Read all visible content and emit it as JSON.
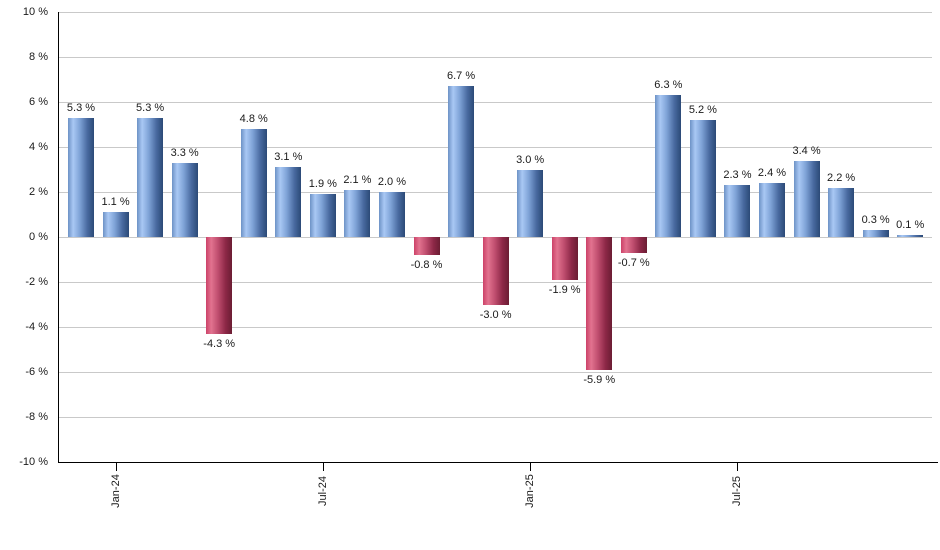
{
  "chart_data": {
    "type": "bar",
    "title": "",
    "xlabel": "",
    "ylabel": "",
    "values": [
      5.3,
      1.1,
      5.3,
      3.3,
      -4.3,
      4.8,
      3.1,
      1.9,
      2.1,
      2.0,
      -0.8,
      6.7,
      -3.0,
      3.0,
      -1.9,
      -5.9,
      -0.7,
      6.3,
      5.2,
      2.3,
      2.4,
      3.4,
      2.2,
      0.3,
      0.1
    ],
    "bar_labels": [
      "5.3 %",
      "1.1 %",
      "5.3 %",
      "3.3 %",
      "-4.3 %",
      "4.8 %",
      "3.1 %",
      "1.9 %",
      "2.1 %",
      "2.0 %",
      "-0.8 %",
      "6.7 %",
      "-3.0 %",
      "3.0 %",
      "-1.9 %",
      "-5.9 %",
      "-0.7 %",
      "6.3 %",
      "5.2 %",
      "2.3 %",
      "2.4 %",
      "3.4 %",
      "2.2 %",
      "0.3 %",
      "0.1 %"
    ],
    "x_ticks": [
      {
        "label": "Jan-24",
        "bar_index": 1
      },
      {
        "label": "Jul-24",
        "bar_index": 7
      },
      {
        "label": "Jan-25",
        "bar_index": 13
      },
      {
        "label": "Jul-25",
        "bar_index": 19
      }
    ],
    "y_tick_labels": [
      "10 %",
      "8 %",
      "6 %",
      "4 %",
      "2 %",
      "0 %",
      "-2 %",
      "-4 %",
      "-6 %",
      "-8 %",
      "-10 %"
    ],
    "ylim": [
      -10,
      10
    ],
    "y_step": 2,
    "grid": true,
    "legend_position": "none",
    "colors": {
      "positive_bar_gradient": [
        "#6d92c6",
        "#a9c8f4",
        "#7fa3d7",
        "#48699f",
        "#2b4a77"
      ],
      "negative_bar_gradient": [
        "#cc4168",
        "#e2738f",
        "#c14f70",
        "#8d2847",
        "#6b1d33"
      ],
      "gridline": "#c9c9c9",
      "axis": "#000000",
      "text": "#1a1a1a"
    }
  }
}
